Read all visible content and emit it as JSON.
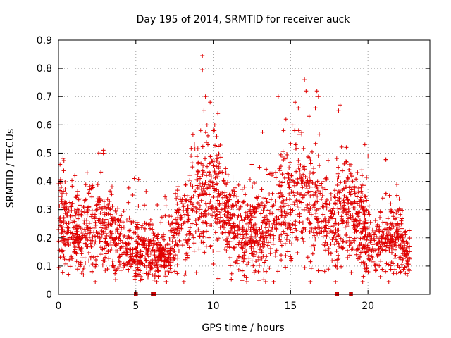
{
  "chart_data": {
    "type": "scatter",
    "title": "Day 195 of 2014, SRMTID for receiver auck",
    "xlabel": "GPS time / hours",
    "ylabel": "SRMTID / TECUs",
    "xlim": [
      0,
      24
    ],
    "ylim": [
      0,
      0.9
    ],
    "xticks": [
      0,
      5,
      10,
      15,
      20
    ],
    "xtick_labels": [
      "0",
      "5",
      "10",
      "15",
      "20"
    ],
    "yticks": [
      0,
      0.1,
      0.2,
      0.3,
      0.4,
      0.5,
      0.6,
      0.7,
      0.8,
      0.9
    ],
    "ytick_labels": [
      "0",
      "0.1",
      "0.2",
      "0.3",
      "0.4",
      "0.5",
      "0.6",
      "0.7",
      "0.8",
      "0.9"
    ],
    "grid": true,
    "marker": "plus",
    "color": "#e00000",
    "x_range_of_data": [
      0,
      22.7
    ],
    "zero_markers_x": [
      5.0,
      6.1,
      6.2,
      18.0,
      18.9
    ],
    "envelope": [
      {
        "x": 0.0,
        "y": 0.3
      },
      {
        "x": 0.5,
        "y": 0.24
      },
      {
        "x": 1.0,
        "y": 0.23
      },
      {
        "x": 1.5,
        "y": 0.22
      },
      {
        "x": 2.0,
        "y": 0.24
      },
      {
        "x": 2.5,
        "y": 0.25
      },
      {
        "x": 3.0,
        "y": 0.23
      },
      {
        "x": 3.5,
        "y": 0.22
      },
      {
        "x": 4.0,
        "y": 0.19
      },
      {
        "x": 4.5,
        "y": 0.18
      },
      {
        "x": 5.0,
        "y": 0.14
      },
      {
        "x": 5.5,
        "y": 0.17
      },
      {
        "x": 6.0,
        "y": 0.15
      },
      {
        "x": 6.5,
        "y": 0.13
      },
      {
        "x": 7.0,
        "y": 0.13
      },
      {
        "x": 7.5,
        "y": 0.2
      },
      {
        "x": 8.0,
        "y": 0.25
      },
      {
        "x": 8.5,
        "y": 0.28
      },
      {
        "x": 9.0,
        "y": 0.32
      },
      {
        "x": 9.5,
        "y": 0.37
      },
      {
        "x": 10.0,
        "y": 0.36
      },
      {
        "x": 10.5,
        "y": 0.33
      },
      {
        "x": 11.0,
        "y": 0.26
      },
      {
        "x": 11.5,
        "y": 0.22
      },
      {
        "x": 12.0,
        "y": 0.2
      },
      {
        "x": 12.5,
        "y": 0.22
      },
      {
        "x": 13.0,
        "y": 0.25
      },
      {
        "x": 13.5,
        "y": 0.24
      },
      {
        "x": 14.0,
        "y": 0.28
      },
      {
        "x": 14.5,
        "y": 0.32
      },
      {
        "x": 15.0,
        "y": 0.34
      },
      {
        "x": 15.5,
        "y": 0.35
      },
      {
        "x": 16.0,
        "y": 0.34
      },
      {
        "x": 16.5,
        "y": 0.31
      },
      {
        "x": 17.0,
        "y": 0.27
      },
      {
        "x": 17.5,
        "y": 0.26
      },
      {
        "x": 18.0,
        "y": 0.28
      },
      {
        "x": 18.5,
        "y": 0.3
      },
      {
        "x": 19.0,
        "y": 0.28
      },
      {
        "x": 19.5,
        "y": 0.25
      },
      {
        "x": 20.0,
        "y": 0.2
      },
      {
        "x": 20.5,
        "y": 0.18
      },
      {
        "x": 21.0,
        "y": 0.19
      },
      {
        "x": 21.5,
        "y": 0.21
      },
      {
        "x": 22.0,
        "y": 0.2
      },
      {
        "x": 22.5,
        "y": 0.13
      }
    ],
    "peaks": [
      {
        "x": 9.3,
        "y": 0.845
      },
      {
        "x": 9.3,
        "y": 0.795
      },
      {
        "x": 9.5,
        "y": 0.7
      },
      {
        "x": 9.8,
        "y": 0.68
      },
      {
        "x": 10.3,
        "y": 0.64
      },
      {
        "x": 9.6,
        "y": 0.6
      },
      {
        "x": 14.2,
        "y": 0.7
      },
      {
        "x": 15.9,
        "y": 0.76
      },
      {
        "x": 16.0,
        "y": 0.72
      },
      {
        "x": 16.7,
        "y": 0.72
      },
      {
        "x": 16.8,
        "y": 0.7
      },
      {
        "x": 15.5,
        "y": 0.66
      },
      {
        "x": 15.3,
        "y": 0.68
      },
      {
        "x": 18.2,
        "y": 0.67
      },
      {
        "x": 18.1,
        "y": 0.65
      },
      {
        "x": 2.9,
        "y": 0.51
      },
      {
        "x": 2.9,
        "y": 0.5
      },
      {
        "x": 0.1,
        "y": 0.46
      },
      {
        "x": 4.9,
        "y": 0.41
      },
      {
        "x": 12.5,
        "y": 0.46
      },
      {
        "x": 19.8,
        "y": 0.53
      },
      {
        "x": 20.0,
        "y": 0.49
      },
      {
        "x": 15.1,
        "y": 0.6
      },
      {
        "x": 16.2,
        "y": 0.63
      },
      {
        "x": 9.4,
        "y": 0.65
      },
      {
        "x": 10.1,
        "y": 0.6
      },
      {
        "x": 14.7,
        "y": 0.62
      },
      {
        "x": 16.6,
        "y": 0.66
      },
      {
        "x": 18.6,
        "y": 0.52
      },
      {
        "x": 13.0,
        "y": 0.45
      }
    ]
  }
}
